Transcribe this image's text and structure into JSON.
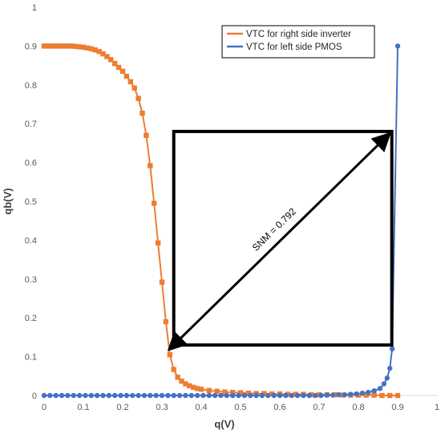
{
  "chart_data": {
    "type": "line",
    "xlabel": "q(V)",
    "ylabel": "qb(V)",
    "xlim": [
      0,
      1
    ],
    "ylim": [
      0,
      1
    ],
    "x_ticks": [
      "0",
      "0.1",
      "0.2",
      "0.3",
      "0.4",
      "0.5",
      "0.6",
      "0.7",
      "0.8",
      "0.9",
      "1"
    ],
    "y_ticks": [
      "0",
      "0.1",
      "0.2",
      "0.3",
      "0.4",
      "0.5",
      "0.6",
      "0.7",
      "0.8",
      "0.9",
      "1"
    ],
    "grid": "none",
    "legend_position": "top-right",
    "series": [
      {
        "name": "VTC for right side inverter",
        "color": "#ED7D31",
        "marker": "square",
        "points": [
          [
            0.0,
            0.9
          ],
          [
            0.01,
            0.9
          ],
          [
            0.02,
            0.9
          ],
          [
            0.03,
            0.9
          ],
          [
            0.04,
            0.9
          ],
          [
            0.05,
            0.9
          ],
          [
            0.06,
            0.9
          ],
          [
            0.07,
            0.9
          ],
          [
            0.08,
            0.899
          ],
          [
            0.09,
            0.898
          ],
          [
            0.1,
            0.897
          ],
          [
            0.11,
            0.895
          ],
          [
            0.12,
            0.893
          ],
          [
            0.13,
            0.89
          ],
          [
            0.14,
            0.886
          ],
          [
            0.15,
            0.88
          ],
          [
            0.16,
            0.873
          ],
          [
            0.17,
            0.865
          ],
          [
            0.18,
            0.855
          ],
          [
            0.19,
            0.845
          ],
          [
            0.2,
            0.835
          ],
          [
            0.21,
            0.822
          ],
          [
            0.22,
            0.808
          ],
          [
            0.23,
            0.792
          ],
          [
            0.24,
            0.765
          ],
          [
            0.25,
            0.727
          ],
          [
            0.26,
            0.67
          ],
          [
            0.27,
            0.592
          ],
          [
            0.28,
            0.495
          ],
          [
            0.29,
            0.393
          ],
          [
            0.3,
            0.292
          ],
          [
            0.31,
            0.19
          ],
          [
            0.32,
            0.105
          ],
          [
            0.33,
            0.067
          ],
          [
            0.34,
            0.047
          ],
          [
            0.35,
            0.037
          ],
          [
            0.36,
            0.03
          ],
          [
            0.37,
            0.025
          ],
          [
            0.38,
            0.021
          ],
          [
            0.39,
            0.018
          ],
          [
            0.4,
            0.016
          ],
          [
            0.42,
            0.013
          ],
          [
            0.44,
            0.011
          ],
          [
            0.46,
            0.009
          ],
          [
            0.48,
            0.008
          ],
          [
            0.5,
            0.007
          ],
          [
            0.52,
            0.006
          ],
          [
            0.54,
            0.005
          ],
          [
            0.56,
            0.005
          ],
          [
            0.58,
            0.004
          ],
          [
            0.6,
            0.004
          ],
          [
            0.62,
            0.003
          ],
          [
            0.64,
            0.003
          ],
          [
            0.66,
            0.003
          ],
          [
            0.68,
            0.002
          ],
          [
            0.7,
            0.002
          ],
          [
            0.72,
            0.002
          ],
          [
            0.74,
            0.002
          ],
          [
            0.76,
            0.001
          ],
          [
            0.78,
            0.001
          ],
          [
            0.8,
            0.001
          ],
          [
            0.82,
            0.001
          ],
          [
            0.84,
            0.001
          ],
          [
            0.86,
            0.0
          ],
          [
            0.88,
            0.0
          ],
          [
            0.9,
            0.0
          ]
        ]
      },
      {
        "name": "VTC for left side PMOS",
        "color": "#4472C4",
        "marker": "circle",
        "points": [
          [
            0.0,
            0.0
          ],
          [
            0.015,
            0.0
          ],
          [
            0.03,
            0.0
          ],
          [
            0.045,
            0.0
          ],
          [
            0.06,
            0.0
          ],
          [
            0.075,
            0.0
          ],
          [
            0.09,
            0.0
          ],
          [
            0.105,
            0.0
          ],
          [
            0.12,
            0.0
          ],
          [
            0.135,
            0.0
          ],
          [
            0.15,
            0.0
          ],
          [
            0.165,
            0.0
          ],
          [
            0.18,
            0.0
          ],
          [
            0.195,
            0.0
          ],
          [
            0.21,
            0.0
          ],
          [
            0.225,
            0.0
          ],
          [
            0.24,
            0.0
          ],
          [
            0.255,
            0.0
          ],
          [
            0.27,
            0.0
          ],
          [
            0.285,
            0.0
          ],
          [
            0.3,
            0.0
          ],
          [
            0.315,
            0.0
          ],
          [
            0.33,
            0.0
          ],
          [
            0.345,
            0.0
          ],
          [
            0.36,
            0.0
          ],
          [
            0.375,
            0.0
          ],
          [
            0.39,
            0.0
          ],
          [
            0.405,
            0.0
          ],
          [
            0.42,
            0.0
          ],
          [
            0.435,
            0.0
          ],
          [
            0.45,
            0.0
          ],
          [
            0.465,
            0.0
          ],
          [
            0.48,
            0.0
          ],
          [
            0.495,
            0.0
          ],
          [
            0.51,
            0.0
          ],
          [
            0.525,
            0.0
          ],
          [
            0.54,
            0.0
          ],
          [
            0.555,
            0.0
          ],
          [
            0.57,
            0.0
          ],
          [
            0.585,
            0.0
          ],
          [
            0.6,
            0.0
          ],
          [
            0.615,
            0.0
          ],
          [
            0.63,
            0.0
          ],
          [
            0.645,
            0.0
          ],
          [
            0.66,
            0.0
          ],
          [
            0.675,
            0.0
          ],
          [
            0.69,
            0.0
          ],
          [
            0.705,
            0.0
          ],
          [
            0.72,
            0.001
          ],
          [
            0.735,
            0.001
          ],
          [
            0.75,
            0.002
          ],
          [
            0.765,
            0.002
          ],
          [
            0.78,
            0.003
          ],
          [
            0.795,
            0.004
          ],
          [
            0.81,
            0.006
          ],
          [
            0.825,
            0.008
          ],
          [
            0.84,
            0.012
          ],
          [
            0.855,
            0.018
          ],
          [
            0.865,
            0.03
          ],
          [
            0.873,
            0.045
          ],
          [
            0.88,
            0.07
          ],
          [
            0.886,
            0.12
          ],
          [
            0.9,
            0.9
          ]
        ]
      }
    ],
    "annotations": {
      "snm_label": "SNM = 0.792",
      "snm_square": {
        "x0": 0.33,
        "x1": 0.885,
        "y0": 0.13,
        "y1": 0.68
      },
      "snm_arrow": {
        "from": [
          0.34,
          0.14
        ],
        "to": [
          0.875,
          0.67
        ]
      }
    }
  }
}
